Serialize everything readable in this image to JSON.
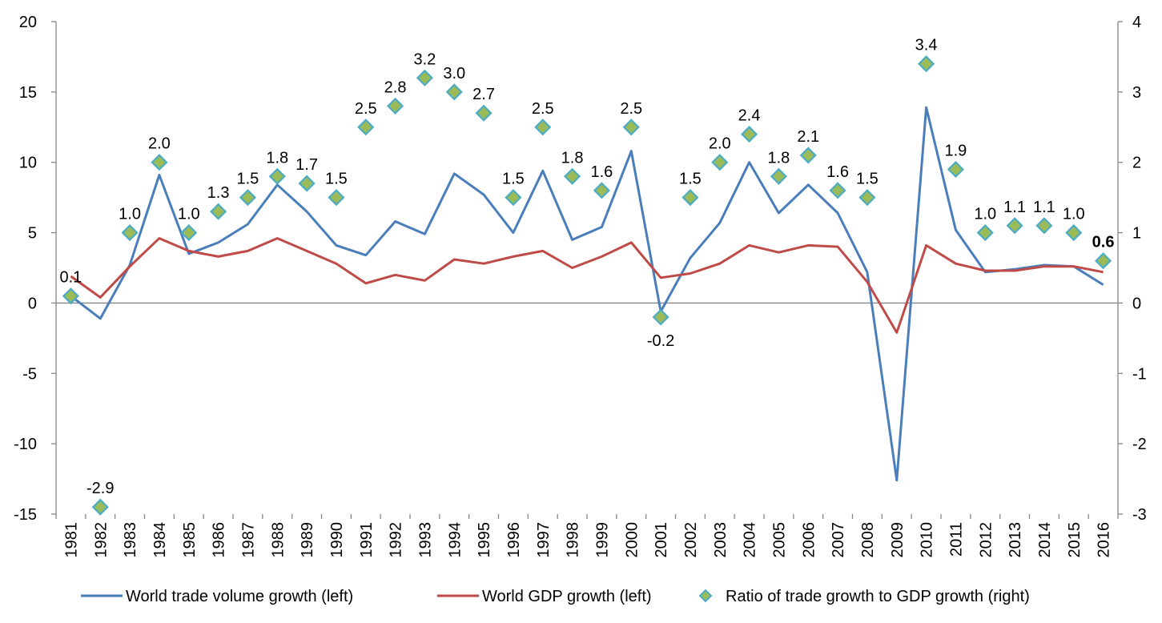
{
  "chart_data": {
    "type": "line",
    "x": [
      "1981",
      "1982",
      "1983",
      "1984",
      "1985",
      "1986",
      "1987",
      "1988",
      "1989",
      "1990",
      "1991",
      "1992",
      "1993",
      "1994",
      "1995",
      "1996",
      "1997",
      "1998",
      "1999",
      "2000",
      "2001",
      "2002",
      "2003",
      "2004",
      "2005",
      "2006",
      "2007",
      "2008",
      "2009",
      "2010",
      "2011",
      "2012",
      "2013",
      "2014",
      "2015",
      "2016"
    ],
    "y_left_ticks": [
      "20",
      "15",
      "10",
      "5",
      "0",
      "-5",
      "-10",
      "-15"
    ],
    "y_right_ticks": [
      "4",
      "3",
      "2",
      "1",
      "0",
      "-1",
      "-2",
      "-3"
    ],
    "ylim_left": [
      -15,
      20
    ],
    "ylim_right": [
      -3,
      4
    ],
    "grid": false,
    "legend_position": "bottom",
    "series": [
      {
        "name": "World trade volume growth (left)",
        "axis": "left",
        "kind": "line",
        "color": "#4a7ebb",
        "values": [
          0.5,
          -1.1,
          2.7,
          9.1,
          3.5,
          4.3,
          5.6,
          8.4,
          6.5,
          4.1,
          3.4,
          5.8,
          4.9,
          9.2,
          7.7,
          5.0,
          9.4,
          4.5,
          5.4,
          10.8,
          -0.6,
          3.2,
          5.7,
          10.0,
          6.4,
          8.4,
          6.4,
          2.2,
          -12.6,
          13.9,
          5.2,
          2.2,
          2.4,
          2.7,
          2.6,
          1.3
        ]
      },
      {
        "name": "World GDP growth (left)",
        "axis": "left",
        "kind": "line",
        "color": "#be4b48",
        "values": [
          1.9,
          0.4,
          2.6,
          4.6,
          3.7,
          3.3,
          3.7,
          4.6,
          3.7,
          2.8,
          1.4,
          2.0,
          1.6,
          3.1,
          2.8,
          3.3,
          3.7,
          2.5,
          3.3,
          4.3,
          1.8,
          2.1,
          2.8,
          4.1,
          3.6,
          4.1,
          4.0,
          1.5,
          -2.1,
          4.1,
          2.8,
          2.3,
          2.3,
          2.6,
          2.6,
          2.2
        ]
      },
      {
        "name": "Ratio of trade growth to GDP growth (right)",
        "axis": "right",
        "kind": "marker",
        "color": "#9bbb59",
        "border_color": "#4bacc6",
        "values": [
          0.1,
          -2.9,
          1.0,
          2.0,
          1.0,
          1.3,
          1.5,
          1.8,
          1.7,
          1.5,
          2.5,
          2.8,
          3.2,
          3.0,
          2.7,
          1.5,
          2.5,
          1.8,
          1.6,
          2.5,
          -0.2,
          1.5,
          2.0,
          2.4,
          1.8,
          2.1,
          1.6,
          1.5,
          null,
          3.4,
          1.9,
          1.0,
          1.1,
          1.1,
          1.0,
          0.6
        ],
        "labels": [
          "0.1",
          "-2.9",
          "1.0",
          "2.0",
          "1.0",
          "1.3",
          "1.5",
          "1.8",
          "1.7",
          "1.5",
          "2.5",
          "2.8",
          "3.2",
          "3.0",
          "2.7",
          "1.5",
          "2.5",
          "1.8",
          "1.6",
          "2.5",
          "-0.2",
          "1.5",
          "2.0",
          "2.4",
          "1.8",
          "2.1",
          "1.6",
          "1.5",
          "",
          "3.4",
          "1.9",
          "1.0",
          "1.1",
          "1.1",
          "1.0",
          "0.6"
        ]
      }
    ]
  }
}
